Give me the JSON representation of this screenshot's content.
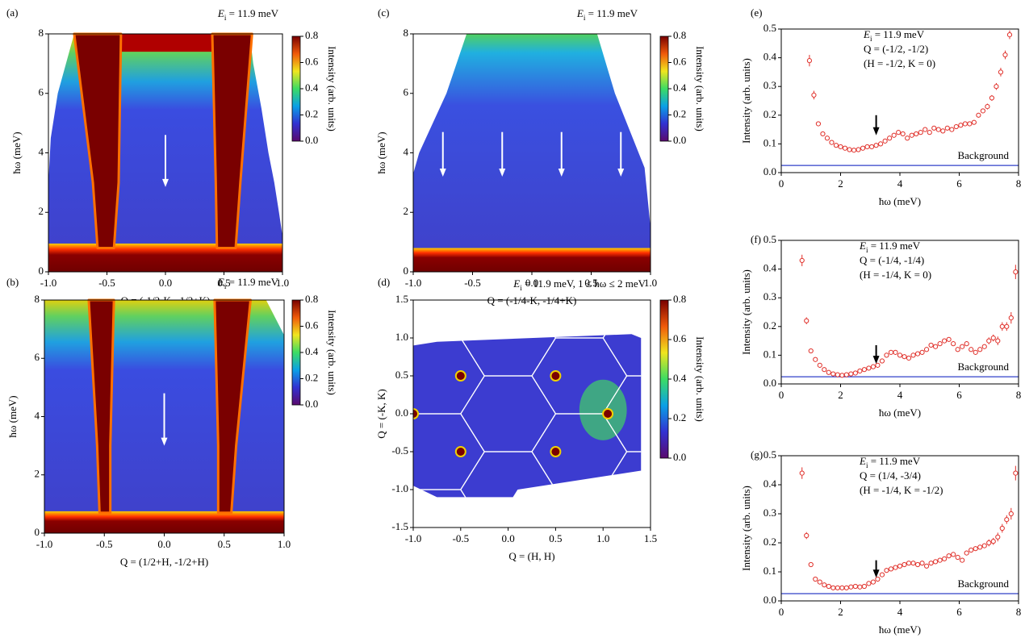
{
  "chart_data": [
    {
      "type": "heatmap",
      "panel": "(a)",
      "annotation": [
        "E",
        "i",
        " = 11.9 meV"
      ],
      "xlabel": "Q = (-1/2-K, -1/2+K)",
      "ylabel": "ħω (meV)",
      "xlim": [
        -1,
        1
      ],
      "xticks": [
        {
          "value": -1,
          "label": "-1.0"
        },
        {
          "value": -0.5,
          "label": "-0.5"
        },
        {
          "value": 0,
          "label": "0.0"
        },
        {
          "value": 0.5,
          "label": "0.5"
        },
        {
          "value": 1,
          "label": "1.0"
        }
      ],
      "ylim": [
        0,
        8
      ],
      "yticks": [
        0,
        2,
        4,
        6,
        8
      ],
      "colorbar": {
        "label": "Intensity (arb. units)",
        "lim": [
          0,
          0.8
        ],
        "ticks": [
          {
            "value": 0,
            "label": "0.0"
          },
          {
            "value": 0.2,
            "label": "0.2"
          },
          {
            "value": 0.4,
            "label": "0.4"
          },
          {
            "value": 0.6,
            "label": "0.6"
          },
          {
            "value": 0.8,
            "label": "0.8"
          }
        ],
        "colormap": [
          "#5a0a6e",
          "#3232d2",
          "#0aa0e6",
          "#3cdc64",
          "#f0e61e",
          "#f05a0a",
          "#780000"
        ]
      }
    },
    {
      "type": "heatmap",
      "panel": "(b)",
      "annotation": [
        "E",
        "i",
        " = 11.9 meV"
      ],
      "xlabel": "Q = (1/2+H, -1/2+H)",
      "ylabel": "ħω (meV)",
      "xlim": [
        -1,
        1
      ],
      "xticks": [
        {
          "value": -1,
          "label": "-1.0"
        },
        {
          "value": -0.5,
          "label": "-0.5"
        },
        {
          "value": 0,
          "label": "0.0"
        },
        {
          "value": 0.5,
          "label": "0.5"
        },
        {
          "value": 1,
          "label": "1.0"
        }
      ],
      "ylim": [
        0,
        8
      ],
      "yticks": [
        0,
        2,
        4,
        6,
        8
      ],
      "colorbar": {
        "label": "Intensity (arb. units)",
        "lim": [
          0,
          0.8
        ],
        "ticks": [
          {
            "value": 0,
            "label": "0.0"
          },
          {
            "value": 0.2,
            "label": "0.2"
          },
          {
            "value": 0.4,
            "label": "0.4"
          },
          {
            "value": 0.6,
            "label": "0.6"
          },
          {
            "value": 0.8,
            "label": "0.8"
          }
        ],
        "colormap": [
          "#5a0a6e",
          "#3232d2",
          "#0aa0e6",
          "#3cdc64",
          "#f0e61e",
          "#f05a0a",
          "#780000"
        ]
      }
    },
    {
      "type": "heatmap",
      "panel": "(c)",
      "annotation": [
        "E",
        "i",
        " = 11.9 meV"
      ],
      "xlabel": "Q = (-1/4-K, -1/4+K)",
      "ylabel": "ħω (meV)",
      "xlim": [
        -1,
        1
      ],
      "xticks": [
        {
          "value": -1,
          "label": "-1.0"
        },
        {
          "value": -0.5,
          "label": "-0.5"
        },
        {
          "value": 0,
          "label": "0.0"
        },
        {
          "value": 0.5,
          "label": "0.5"
        },
        {
          "value": 1,
          "label": "1.0"
        }
      ],
      "ylim": [
        0,
        8
      ],
      "yticks": [
        0,
        2,
        4,
        6,
        8
      ],
      "colorbar": {
        "label": "Intensity (arb. units)",
        "lim": [
          0,
          0.8
        ],
        "ticks": [
          {
            "value": 0,
            "label": "0.0"
          },
          {
            "value": 0.2,
            "label": "0.2"
          },
          {
            "value": 0.4,
            "label": "0.4"
          },
          {
            "value": 0.6,
            "label": "0.6"
          },
          {
            "value": 0.8,
            "label": "0.8"
          }
        ],
        "colormap": [
          "#5a0a6e",
          "#3232d2",
          "#0aa0e6",
          "#3cdc64",
          "#f0e61e",
          "#f05a0a",
          "#780000"
        ]
      }
    },
    {
      "type": "heatmap",
      "panel": "(d)",
      "annotation": [
        "E",
        "i",
        " = 11.9 meV, 1 ≤ ħω ≤ 2 meV"
      ],
      "xlabel": "Q = (H, H)",
      "ylabel": "Q = (-K, K)",
      "xlim": [
        -1,
        1.5
      ],
      "xticks": [
        {
          "value": -1,
          "label": "-1.0"
        },
        {
          "value": -0.5,
          "label": "-0.5"
        },
        {
          "value": 0,
          "label": "0.0"
        },
        {
          "value": 0.5,
          "label": "0.5"
        },
        {
          "value": 1,
          "label": "1.0"
        },
        {
          "value": 1.5,
          "label": "1.5"
        }
      ],
      "ylim": [
        -1.5,
        1.5
      ],
      "yticks": [
        {
          "value": -1.5,
          "label": "-1.5"
        },
        {
          "value": -1,
          "label": "-1.0"
        },
        {
          "value": -0.5,
          "label": "-0.5"
        },
        {
          "value": 0,
          "label": "0.0"
        },
        {
          "value": 0.5,
          "label": "0.5"
        },
        {
          "value": 1,
          "label": "1.0"
        },
        {
          "value": 1.5,
          "label": "1.5"
        }
      ],
      "colorbar": {
        "label": "Intensity (arb. units)",
        "lim": [
          0,
          0.8
        ],
        "ticks": [
          {
            "value": 0,
            "label": "0.0"
          },
          {
            "value": 0.2,
            "label": "0.2"
          },
          {
            "value": 0.4,
            "label": "0.4"
          },
          {
            "value": 0.6,
            "label": "0.6"
          },
          {
            "value": 0.8,
            "label": "0.8"
          }
        ],
        "colormap": [
          "#5a0a6e",
          "#3232d2",
          "#0aa0e6",
          "#3cdc64",
          "#f0e61e",
          "#f05a0a",
          "#780000"
        ]
      }
    },
    {
      "type": "scatter",
      "panel": "(e)",
      "annotation": {
        "energy": [
          "E",
          "i",
          " = 11.9 meV"
        ],
        "q": "Q = (-1/2, -1/2)",
        "hk": "(H = -1/2, K = 0)"
      },
      "xlabel": "ħω (meV)",
      "ylabel": "Intensity (arb. units)",
      "xlim": [
        0,
        8
      ],
      "xticks": [
        0,
        2,
        4,
        6,
        8
      ],
      "ylim": [
        0,
        0.5
      ],
      "yticks": [
        {
          "value": 0,
          "label": "0.0"
        },
        0.1,
        0.2,
        0.3,
        0.4,
        0.5
      ],
      "background": {
        "label": "Background",
        "value": 0.025,
        "color": "#3040c8"
      },
      "x": [
        0.95,
        1.1,
        1.25,
        1.4,
        1.55,
        1.7,
        1.85,
        2,
        2.15,
        2.3,
        2.45,
        2.6,
        2.75,
        2.9,
        3.05,
        3.2,
        3.35,
        3.5,
        3.65,
        3.8,
        3.95,
        4.1,
        4.25,
        4.4,
        4.55,
        4.7,
        4.85,
        5,
        5.15,
        5.3,
        5.45,
        5.6,
        5.75,
        5.9,
        6.05,
        6.2,
        6.35,
        6.5,
        6.65,
        6.8,
        6.95,
        7.1,
        7.25,
        7.4,
        7.55,
        7.7
      ],
      "series": [
        {
          "color": "#e0302a",
          "values": [
            0.39,
            0.27,
            0.17,
            0.135,
            0.12,
            0.105,
            0.095,
            0.09,
            0.085,
            0.08,
            0.078,
            0.08,
            0.085,
            0.09,
            0.09,
            0.095,
            0.1,
            0.11,
            0.12,
            0.13,
            0.14,
            0.135,
            0.12,
            0.13,
            0.135,
            0.14,
            0.15,
            0.14,
            0.155,
            0.15,
            0.145,
            0.155,
            0.15,
            0.16,
            0.165,
            0.17,
            0.17,
            0.175,
            0.2,
            0.215,
            0.23,
            0.26,
            0.3,
            0.35,
            0.41,
            0.48
          ],
          "errors": [
            0.02,
            0.015,
            0.008,
            0.008,
            0.008,
            0.008,
            0.008,
            0.008,
            0.008,
            0.008,
            0.008,
            0.008,
            0.008,
            0.008,
            0.008,
            0.008,
            0.008,
            0.008,
            0.008,
            0.008,
            0.008,
            0.008,
            0.008,
            0.008,
            0.008,
            0.008,
            0.008,
            0.008,
            0.008,
            0.008,
            0.008,
            0.008,
            0.008,
            0.008,
            0.008,
            0.008,
            0.008,
            0.008,
            0.008,
            0.008,
            0.01,
            0.01,
            0.012,
            0.015,
            0.015,
            0.015
          ]
        }
      ]
    },
    {
      "type": "scatter",
      "panel": "(f)",
      "annotation": {
        "energy": [
          "E",
          "i",
          " = 11.9 meV"
        ],
        "q": "Q = (-1/4, -1/4)",
        "hk": "(H = -1/4, K = 0)"
      },
      "xlabel": "ħω (meV)",
      "ylabel": "Intensity (arb. units)",
      "xlim": [
        0,
        8
      ],
      "xticks": [
        0,
        2,
        4,
        6,
        8
      ],
      "ylim": [
        0,
        0.5
      ],
      "yticks": [
        {
          "value": 0,
          "label": "0.0"
        },
        0.1,
        0.2,
        0.3,
        0.4,
        0.5
      ],
      "background": {
        "label": "Background",
        "value": 0.025,
        "color": "#3040c8"
      },
      "x": [
        0.7,
        0.85,
        1,
        1.15,
        1.3,
        1.45,
        1.6,
        1.75,
        1.9,
        2.05,
        2.2,
        2.35,
        2.5,
        2.65,
        2.8,
        2.95,
        3.1,
        3.25,
        3.4,
        3.55,
        3.7,
        3.85,
        4,
        4.15,
        4.3,
        4.45,
        4.6,
        4.75,
        4.9,
        5.05,
        5.2,
        5.35,
        5.5,
        5.65,
        5.8,
        5.95,
        6.1,
        6.25,
        6.4,
        6.55,
        6.7,
        6.85,
        7,
        7.15,
        7.3,
        7.45,
        7.6,
        7.75,
        7.9
      ],
      "series": [
        {
          "color": "#e0302a",
          "values": [
            0.43,
            0.22,
            0.115,
            0.085,
            0.065,
            0.05,
            0.04,
            0.035,
            0.032,
            0.03,
            0.032,
            0.035,
            0.038,
            0.045,
            0.05,
            0.055,
            0.06,
            0.065,
            0.08,
            0.1,
            0.11,
            0.11,
            0.1,
            0.095,
            0.09,
            0.1,
            0.105,
            0.11,
            0.12,
            0.135,
            0.13,
            0.14,
            0.15,
            0.155,
            0.14,
            0.12,
            0.13,
            0.14,
            0.12,
            0.11,
            0.12,
            0.13,
            0.15,
            0.16,
            0.15,
            0.2,
            0.2,
            0.23,
            0.39
          ],
          "errors": [
            0.02,
            0.012,
            0.008,
            0.008,
            0.008,
            0.008,
            0.008,
            0.008,
            0.008,
            0.008,
            0.008,
            0.008,
            0.008,
            0.008,
            0.008,
            0.008,
            0.008,
            0.008,
            0.008,
            0.008,
            0.008,
            0.008,
            0.008,
            0.008,
            0.008,
            0.008,
            0.008,
            0.008,
            0.008,
            0.008,
            0.008,
            0.008,
            0.008,
            0.008,
            0.008,
            0.008,
            0.008,
            0.008,
            0.008,
            0.008,
            0.008,
            0.008,
            0.012,
            0.012,
            0.015,
            0.015,
            0.015,
            0.02,
            0.025
          ]
        }
      ]
    },
    {
      "type": "scatter",
      "panel": "(g)",
      "annotation": {
        "energy": [
          "E",
          "i",
          " = 11.9 meV"
        ],
        "q": "Q = (1/4, -3/4)",
        "hk": "(H = -1/4, K = -1/2)"
      },
      "xlabel": "ħω (meV)",
      "ylabel": "Intensity (arb. units)",
      "xlim": [
        0,
        8
      ],
      "xticks": [
        0,
        2,
        4,
        6,
        8
      ],
      "ylim": [
        0,
        0.5
      ],
      "yticks": [
        {
          "value": 0,
          "label": "0.0"
        },
        0.1,
        0.2,
        0.3,
        0.4,
        0.5
      ],
      "background": {
        "label": "Background",
        "value": 0.025,
        "color": "#3040c8"
      },
      "x": [
        0.7,
        0.85,
        1,
        1.15,
        1.3,
        1.45,
        1.6,
        1.75,
        1.9,
        2.05,
        2.2,
        2.35,
        2.5,
        2.65,
        2.8,
        2.95,
        3.1,
        3.25,
        3.4,
        3.55,
        3.7,
        3.85,
        4,
        4.15,
        4.3,
        4.45,
        4.6,
        4.75,
        4.9,
        5.05,
        5.2,
        5.35,
        5.5,
        5.65,
        5.8,
        5.95,
        6.1,
        6.25,
        6.4,
        6.55,
        6.7,
        6.85,
        7,
        7.15,
        7.3,
        7.45,
        7.6,
        7.75,
        7.9
      ],
      "series": [
        {
          "color": "#e0302a",
          "values": [
            0.44,
            0.225,
            0.125,
            0.075,
            0.065,
            0.055,
            0.05,
            0.045,
            0.045,
            0.045,
            0.045,
            0.048,
            0.05,
            0.048,
            0.05,
            0.06,
            0.065,
            0.075,
            0.09,
            0.105,
            0.11,
            0.115,
            0.12,
            0.125,
            0.13,
            0.13,
            0.125,
            0.13,
            0.12,
            0.13,
            0.135,
            0.14,
            0.145,
            0.155,
            0.16,
            0.15,
            0.14,
            0.165,
            0.175,
            0.18,
            0.185,
            0.19,
            0.2,
            0.205,
            0.22,
            0.25,
            0.28,
            0.3,
            0.44
          ],
          "errors": [
            0.02,
            0.012,
            0.008,
            0.008,
            0.008,
            0.008,
            0.008,
            0.008,
            0.008,
            0.008,
            0.008,
            0.008,
            0.008,
            0.008,
            0.008,
            0.008,
            0.008,
            0.008,
            0.008,
            0.008,
            0.008,
            0.008,
            0.008,
            0.008,
            0.008,
            0.008,
            0.008,
            0.008,
            0.008,
            0.008,
            0.008,
            0.008,
            0.008,
            0.008,
            0.008,
            0.008,
            0.008,
            0.008,
            0.008,
            0.008,
            0.008,
            0.008,
            0.012,
            0.012,
            0.015,
            0.015,
            0.015,
            0.02,
            0.025
          ]
        }
      ]
    }
  ]
}
